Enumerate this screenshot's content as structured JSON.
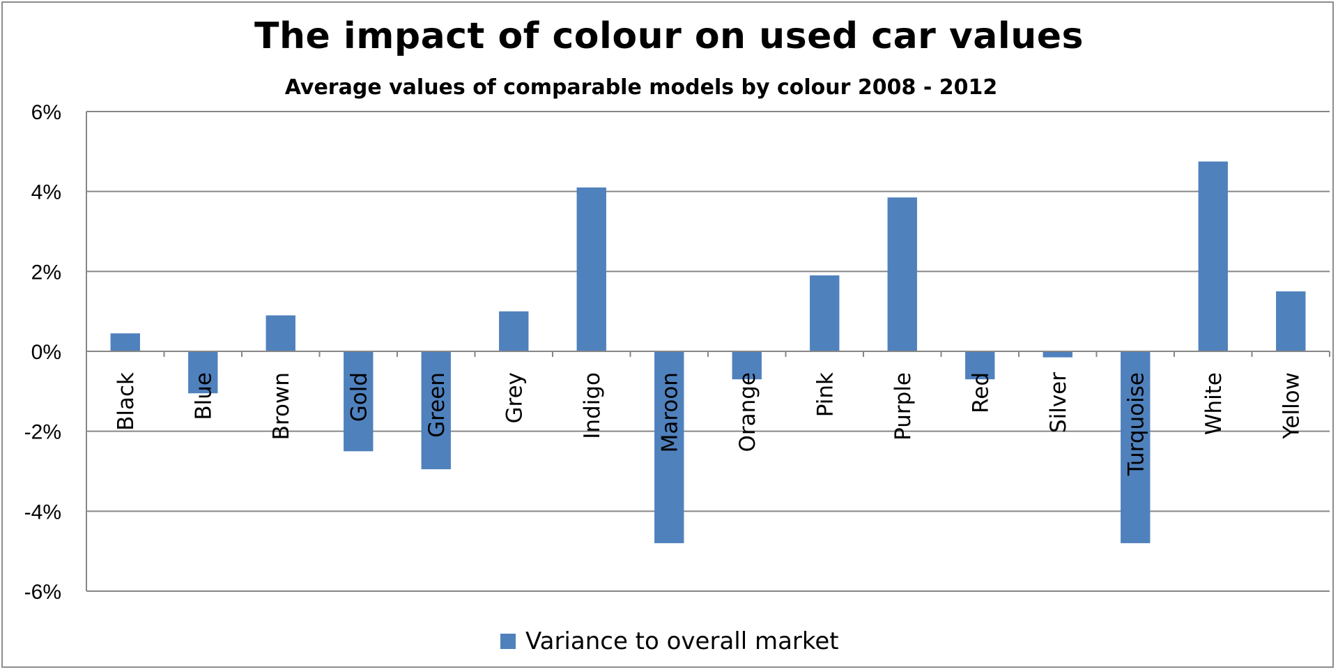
{
  "chart_data": {
    "type": "bar",
    "title": "The impact of colour on used car values",
    "subtitle": "Average values of comparable models by colour 2008 - 2012",
    "categories": [
      "Black",
      "Blue",
      "Brown",
      "Gold",
      "Green",
      "Grey",
      "Indigo",
      "Maroon",
      "Orange",
      "Pink",
      "Purple",
      "Red",
      "Silver",
      "Turquoise",
      "White",
      "Yellow"
    ],
    "series": [
      {
        "name": "Variance to overall market",
        "values": [
          0.45,
          -1.05,
          0.9,
          -2.5,
          -2.95,
          1.0,
          4.1,
          -4.8,
          -0.7,
          1.9,
          3.85,
          -0.7,
          -0.15,
          -4.8,
          4.75,
          1.5
        ]
      }
    ],
    "ylim": [
      -6,
      6
    ],
    "yticks": [
      "-6%",
      "-4%",
      "-2%",
      "0%",
      "2%",
      "4%",
      "6%"
    ],
    "ytick_values": [
      -6,
      -4,
      -2,
      0,
      2,
      4,
      6
    ],
    "grid": true,
    "legend_position": "bottom",
    "colors": {
      "bar": "#4f81bd",
      "grid": "#868686"
    }
  }
}
